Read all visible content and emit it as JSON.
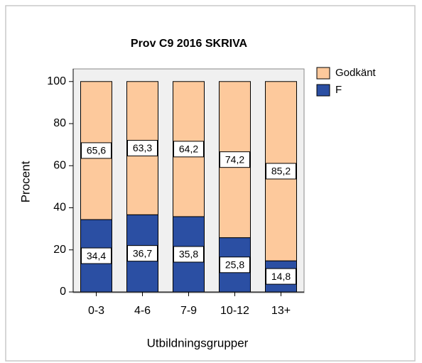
{
  "chart_data": {
    "type": "stacked_bar",
    "title": "Prov C9 2016 SKRIVA",
    "xlabel": "Utbildningsgrupper",
    "ylabel": "Procent",
    "categories": [
      "0-3",
      "4-6",
      "7-9",
      "10-12",
      "13+"
    ],
    "series": [
      {
        "name": "F",
        "color": "#2b4fa3",
        "values": [
          34.4,
          36.7,
          35.8,
          25.8,
          14.8
        ],
        "value_labels": [
          "34,4",
          "36,7",
          "35,8",
          "25,8",
          "14,8"
        ]
      },
      {
        "name": "Godkänt",
        "color": "#fdc99c",
        "values": [
          65.6,
          63.3,
          64.2,
          74.2,
          85.2
        ],
        "value_labels": [
          "65,6",
          "63,3",
          "64,2",
          "74,2",
          "85,2"
        ]
      }
    ],
    "ylim": [
      0,
      106
    ],
    "yticks": [
      0,
      20,
      40,
      60,
      80,
      100
    ],
    "legend": "top-right"
  }
}
